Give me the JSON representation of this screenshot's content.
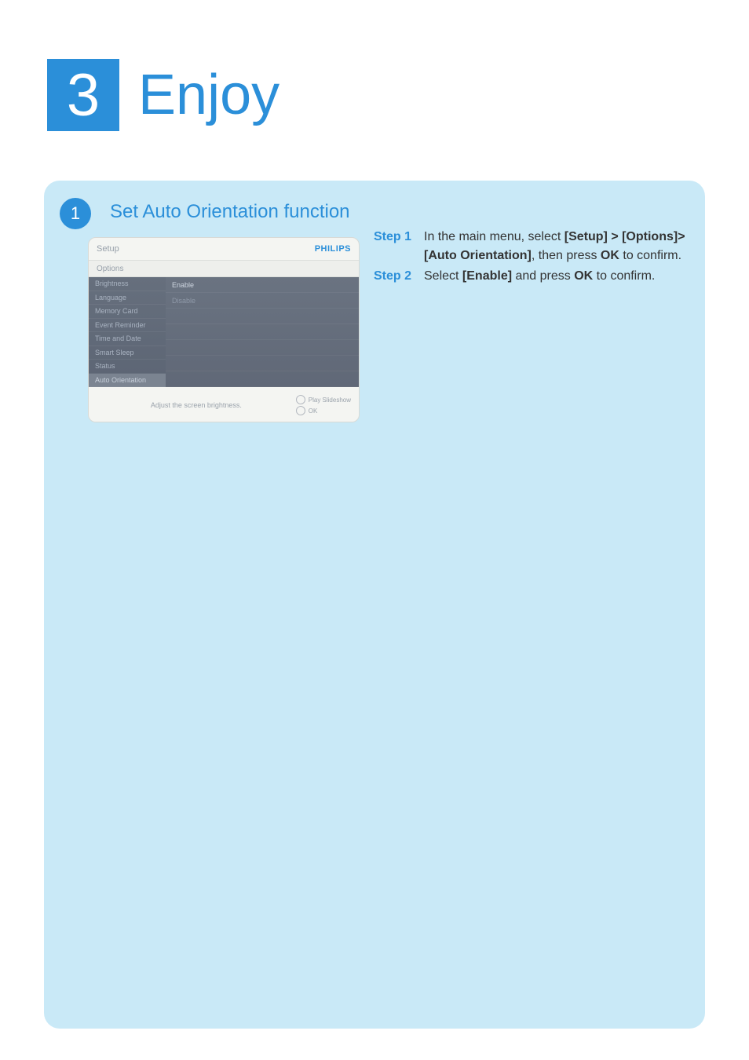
{
  "colors": {
    "brand_blue": "#2b8fd9",
    "panel_bg": "#c9e9f7",
    "page_bg": "#ffffff",
    "text_body": "#333333",
    "ui_muted": "#97a0aa",
    "ui_panel_dark1": "#666f7d",
    "ui_panel_dark2": "#5c6574"
  },
  "header": {
    "chapter_number": "3",
    "chapter_title": "Enjoy"
  },
  "section": {
    "badge_number": "1",
    "title": "Set  Auto Orientation function"
  },
  "screenshot": {
    "setup_label": "Setup",
    "brand": "PHILIPS",
    "options_label": "Options",
    "left_items": [
      "Brightness",
      "Language",
      "Memory Card",
      "Event Reminder",
      "Time and Date",
      "Smart Sleep",
      "Status",
      "Auto Orientation"
    ],
    "left_selected_index": 7,
    "mid_items": [
      "Enable",
      "Disable"
    ],
    "mid_active_index": 0,
    "footer_hint": "Adjust the screen brightness.",
    "footer_actions": [
      {
        "icon": "slideshow-icon",
        "label": "Play Slideshow"
      },
      {
        "icon": "ok-icon",
        "label": "OK"
      }
    ]
  },
  "instructions": {
    "step1": {
      "label": "Step 1",
      "intro": "In the main menu, select ",
      "path1": "[Setup] > [Options]>",
      "path2": "[Auto Orientation]",
      "mid": ", then press ",
      "ok": "OK",
      "end": " to confirm."
    },
    "step2": {
      "label": "Step 2",
      "intro": "Select ",
      "enable": "[Enable]",
      "mid": " and press ",
      "ok": "OK",
      "end": " to confirm."
    }
  }
}
